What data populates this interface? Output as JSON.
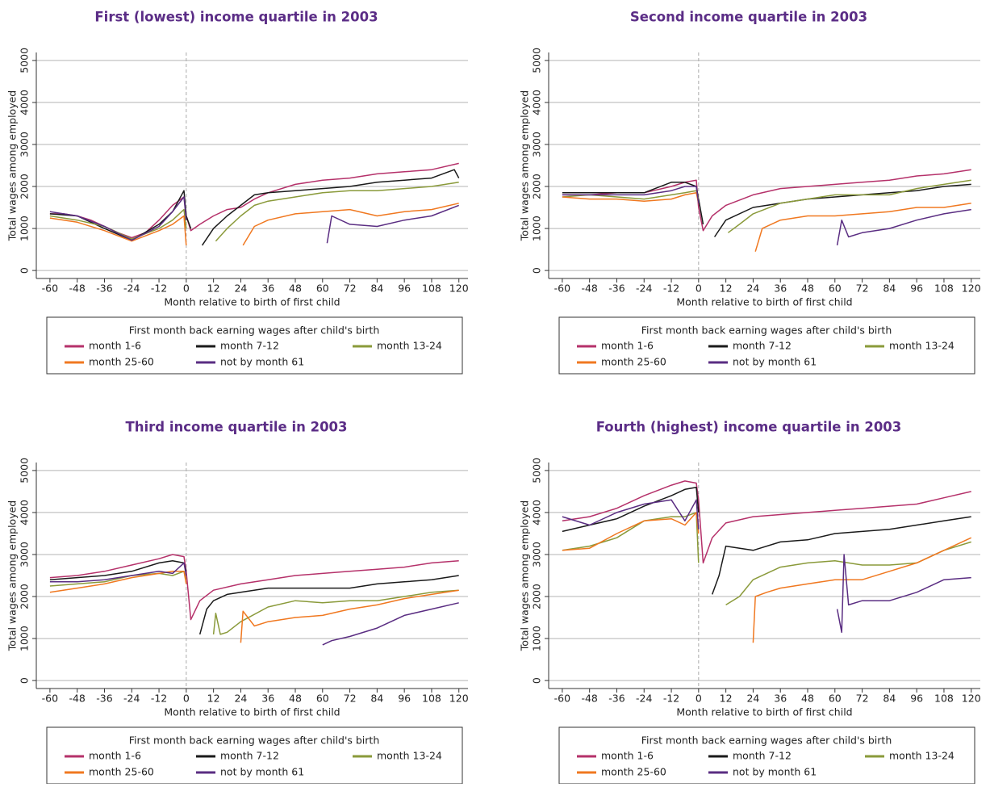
{
  "chart_data": [
    {
      "type": "line",
      "title": "First (lowest) income quartile in 2003",
      "xlabel": "Month relative to birth of first child",
      "ylabel": "Total wages among employed",
      "legend_title": "First month back earning wages after child's birth",
      "xlim": [
        -66,
        124
      ],
      "ylim": [
        -190,
        5190
      ],
      "xticks": [
        -60,
        -48,
        -36,
        -24,
        -12,
        0,
        12,
        24,
        36,
        48,
        60,
        72,
        84,
        96,
        108,
        120
      ],
      "yticks": [
        0,
        1000,
        2000,
        3000,
        4000,
        5000
      ],
      "grid": true,
      "reference_line": 0,
      "series": [
        {
          "name": "month 1-6",
          "color": "#b5316a",
          "x": [
            -60,
            -54,
            -48,
            -42,
            -36,
            -30,
            -24,
            -18,
            -12,
            -6,
            -1,
            0,
            2,
            6,
            12,
            18,
            24,
            30,
            36,
            48,
            60,
            72,
            84,
            96,
            108,
            120
          ],
          "values": [
            1350,
            1350,
            1300,
            1200,
            1050,
            900,
            780,
            900,
            1200,
            1550,
            1750,
            1300,
            950,
            1100,
            1300,
            1450,
            1500,
            1700,
            1850,
            2050,
            2150,
            2200,
            2300,
            2350,
            2400,
            2550
          ]
        },
        {
          "name": "month 7-12",
          "color": "#1a1a1a",
          "x": [
            -60,
            -48,
            -36,
            -24,
            -12,
            -6,
            -1,
            0,
            2,
            4,
            7,
            12,
            18,
            24,
            30,
            36,
            48,
            60,
            72,
            84,
            96,
            108,
            118,
            120
          ],
          "values": [
            1350,
            1300,
            1000,
            720,
            1100,
            1400,
            1900,
            1300,
            1000,
            null,
            600,
            1000,
            1300,
            1550,
            1800,
            1850,
            1900,
            1950,
            2000,
            2100,
            2150,
            2200,
            2400,
            2200
          ]
        },
        {
          "name": "month 13-24",
          "color": "#8a9a3a",
          "x": [
            -60,
            -48,
            -36,
            -24,
            -12,
            -6,
            -1,
            0,
            6,
            13,
            18,
            24,
            30,
            36,
            48,
            60,
            72,
            84,
            96,
            108,
            120
          ],
          "values": [
            1300,
            1200,
            1050,
            750,
            1000,
            1200,
            1450,
            1000,
            null,
            700,
            1000,
            1300,
            1550,
            1650,
            1750,
            1850,
            1900,
            1900,
            1950,
            2000,
            2100
          ]
        },
        {
          "name": "month 25-60",
          "color": "#f07820",
          "x": [
            -60,
            -48,
            -36,
            -24,
            -12,
            -6,
            -1,
            0,
            12,
            25,
            30,
            36,
            48,
            60,
            72,
            84,
            96,
            108,
            120
          ],
          "values": [
            1250,
            1150,
            950,
            700,
            950,
            1100,
            1300,
            600,
            null,
            600,
            1050,
            1200,
            1350,
            1400,
            1450,
            1300,
            1400,
            1450,
            1600
          ]
        },
        {
          "name": "not by month 61",
          "color": "#5a2d82",
          "x": [
            -60,
            -48,
            -36,
            -24,
            -12,
            -6,
            -1,
            0,
            30,
            62,
            64,
            72,
            84,
            96,
            108,
            120
          ],
          "values": [
            1400,
            1300,
            1050,
            720,
            1050,
            1400,
            1750,
            1200,
            null,
            650,
            1300,
            1100,
            1050,
            1200,
            1300,
            1550
          ]
        }
      ]
    },
    {
      "type": "line",
      "title": "Second income quartile in 2003",
      "xlabel": "Month relative to birth of first child",
      "ylabel": "Total wages among employed",
      "legend_title": "First month back earning wages after child's birth",
      "xlim": [
        -66,
        124
      ],
      "ylim": [
        -190,
        5190
      ],
      "xticks": [
        -60,
        -48,
        -36,
        -24,
        -12,
        0,
        12,
        24,
        36,
        48,
        60,
        72,
        84,
        96,
        108,
        120
      ],
      "yticks": [
        0,
        1000,
        2000,
        3000,
        4000,
        5000
      ],
      "grid": true,
      "reference_line": 0,
      "series": [
        {
          "name": "month 1-6",
          "color": "#b5316a",
          "x": [
            -60,
            -48,
            -36,
            -24,
            -12,
            -6,
            -1,
            0,
            2,
            6,
            12,
            24,
            36,
            48,
            60,
            72,
            84,
            96,
            108,
            120
          ],
          "values": [
            1800,
            1800,
            1850,
            1850,
            2000,
            2100,
            2150,
            1500,
            950,
            1300,
            1550,
            1800,
            1950,
            2000,
            2050,
            2100,
            2150,
            2250,
            2300,
            2400
          ]
        },
        {
          "name": "month 7-12",
          "color": "#1a1a1a",
          "x": [
            -60,
            -48,
            -36,
            -24,
            -12,
            -6,
            -1,
            0,
            2,
            4,
            7,
            12,
            24,
            36,
            48,
            60,
            72,
            84,
            96,
            108,
            120
          ],
          "values": [
            1850,
            1850,
            1850,
            1850,
            2100,
            2100,
            2000,
            1700,
            1100,
            null,
            800,
            1200,
            1500,
            1600,
            1700,
            1750,
            1800,
            1850,
            1900,
            2000,
            2050
          ]
        },
        {
          "name": "month 13-24",
          "color": "#8a9a3a",
          "x": [
            -60,
            -48,
            -36,
            -24,
            -12,
            -6,
            -1,
            0,
            6,
            13,
            18,
            24,
            36,
            48,
            60,
            72,
            84,
            96,
            108,
            120
          ],
          "values": [
            1750,
            1800,
            1750,
            1700,
            1800,
            1850,
            1900,
            1700,
            null,
            900,
            1100,
            1350,
            1600,
            1700,
            1800,
            1800,
            1800,
            1950,
            2050,
            2150
          ]
        },
        {
          "name": "month 25-60",
          "color": "#f07820",
          "x": [
            -60,
            -48,
            -36,
            -24,
            -12,
            -6,
            -1,
            0,
            12,
            25,
            28,
            36,
            48,
            60,
            72,
            84,
            96,
            108,
            120
          ],
          "values": [
            1750,
            1700,
            1700,
            1650,
            1700,
            1800,
            1850,
            1600,
            null,
            450,
            1000,
            1200,
            1300,
            1300,
            1350,
            1400,
            1500,
            1500,
            1600
          ]
        },
        {
          "name": "not by month 61",
          "color": "#5a2d82",
          "x": [
            -60,
            -48,
            -36,
            -24,
            -12,
            -6,
            -1,
            0,
            30,
            61,
            63,
            66,
            72,
            84,
            96,
            108,
            120
          ],
          "values": [
            1800,
            1800,
            1800,
            1800,
            1900,
            2000,
            2000,
            1600,
            null,
            600,
            1200,
            800,
            900,
            1000,
            1200,
            1350,
            1450
          ]
        }
      ]
    },
    {
      "type": "line",
      "title": "Third income quartile in 2003",
      "xlabel": "Month relative to birth of first child",
      "ylabel": "Total wages among employed",
      "legend_title": "First month back earning wages after child's birth",
      "xlim": [
        -66,
        124
      ],
      "ylim": [
        -190,
        5190
      ],
      "xticks": [
        -60,
        -48,
        -36,
        -24,
        -12,
        0,
        12,
        24,
        36,
        48,
        60,
        72,
        84,
        96,
        108,
        120
      ],
      "yticks": [
        0,
        1000,
        2000,
        3000,
        4000,
        5000
      ],
      "grid": true,
      "reference_line": 0,
      "series": [
        {
          "name": "month 1-6",
          "color": "#b5316a",
          "x": [
            -60,
            -48,
            -36,
            -24,
            -12,
            -6,
            -1,
            0,
            2,
            6,
            12,
            24,
            36,
            48,
            60,
            72,
            84,
            96,
            108,
            120
          ],
          "values": [
            2450,
            2500,
            2600,
            2750,
            2900,
            3000,
            2950,
            2600,
            1450,
            1900,
            2150,
            2300,
            2400,
            2500,
            2550,
            2600,
            2650,
            2700,
            2800,
            2850
          ]
        },
        {
          "name": "month 7-12",
          "color": "#1a1a1a",
          "x": [
            -60,
            -48,
            -36,
            -24,
            -12,
            -6,
            -1,
            0,
            3,
            6,
            9,
            12,
            18,
            24,
            36,
            48,
            60,
            72,
            84,
            96,
            108,
            120
          ],
          "values": [
            2400,
            2450,
            2500,
            2600,
            2800,
            2850,
            2800,
            2600,
            null,
            1100,
            1700,
            1900,
            2050,
            2100,
            2200,
            2200,
            2200,
            2200,
            2300,
            2350,
            2400,
            2500
          ]
        },
        {
          "name": "month 13-24",
          "color": "#8a9a3a",
          "x": [
            -60,
            -48,
            -36,
            -24,
            -12,
            -6,
            -1,
            0,
            6,
            12,
            13,
            15,
            18,
            24,
            36,
            48,
            60,
            72,
            84,
            96,
            108,
            120
          ],
          "values": [
            2250,
            2300,
            2350,
            2500,
            2550,
            2500,
            2600,
            2400,
            null,
            1100,
            1600,
            1100,
            1150,
            1400,
            1750,
            1900,
            1850,
            1900,
            1900,
            2000,
            2100,
            2150
          ]
        },
        {
          "name": "month 25-60",
          "color": "#f07820",
          "x": [
            -60,
            -48,
            -36,
            -24,
            -12,
            -6,
            -1,
            0,
            12,
            24,
            25,
            30,
            36,
            48,
            60,
            72,
            84,
            96,
            108,
            120
          ],
          "values": [
            2100,
            2200,
            2300,
            2450,
            2550,
            2600,
            2600,
            2300,
            null,
            900,
            1650,
            1300,
            1400,
            1500,
            1550,
            1700,
            1800,
            1950,
            2050,
            2150
          ]
        },
        {
          "name": "not by month 61",
          "color": "#5a2d82",
          "x": [
            -60,
            -48,
            -36,
            -24,
            -12,
            -6,
            -1,
            0,
            30,
            60,
            64,
            72,
            84,
            96,
            108,
            120
          ],
          "values": [
            2350,
            2350,
            2400,
            2500,
            2600,
            2550,
            2800,
            2500,
            null,
            850,
            950,
            1050,
            1250,
            1550,
            1700,
            1850
          ]
        }
      ]
    },
    {
      "type": "line",
      "title": "Fourth (highest) income quartile in 2003",
      "xlabel": "Month relative to birth of first child",
      "ylabel": "Total wages among employed",
      "legend_title": "First month back earning wages after child's birth",
      "xlim": [
        -66,
        124
      ],
      "ylim": [
        -190,
        5190
      ],
      "xticks": [
        -60,
        -48,
        -36,
        -24,
        -12,
        0,
        12,
        24,
        36,
        48,
        60,
        72,
        84,
        96,
        108,
        120
      ],
      "yticks": [
        0,
        1000,
        2000,
        3000,
        4000,
        5000
      ],
      "grid": true,
      "reference_line": 0,
      "series": [
        {
          "name": "month 1-6",
          "color": "#b5316a",
          "x": [
            -60,
            -48,
            -36,
            -24,
            -12,
            -6,
            -1,
            0,
            2,
            6,
            12,
            24,
            36,
            48,
            60,
            72,
            84,
            96,
            108,
            120
          ],
          "values": [
            3800,
            3900,
            4100,
            4400,
            4650,
            4750,
            4700,
            4300,
            2800,
            3400,
            3750,
            3900,
            3950,
            4000,
            4050,
            4100,
            4150,
            4200,
            4350,
            4500
          ]
        },
        {
          "name": "month 7-12",
          "color": "#1a1a1a",
          "x": [
            -60,
            -48,
            -36,
            -24,
            -12,
            -6,
            -1,
            0,
            3,
            6,
            9,
            12,
            24,
            36,
            48,
            60,
            72,
            84,
            96,
            108,
            120
          ],
          "values": [
            3550,
            3700,
            3850,
            4150,
            4400,
            4550,
            4600,
            4000,
            null,
            2050,
            2500,
            3200,
            3100,
            3300,
            3350,
            3500,
            3550,
            3600,
            3700,
            3800,
            3900
          ]
        },
        {
          "name": "month 13-24",
          "color": "#8a9a3a",
          "x": [
            -60,
            -48,
            -36,
            -24,
            -12,
            -6,
            -1,
            0,
            6,
            12,
            18,
            24,
            36,
            48,
            60,
            72,
            84,
            96,
            108,
            120
          ],
          "values": [
            3100,
            3200,
            3400,
            3800,
            3900,
            3900,
            4000,
            2800,
            null,
            1800,
            2000,
            2400,
            2700,
            2800,
            2850,
            2750,
            2750,
            2800,
            3100,
            3300
          ]
        },
        {
          "name": "month 25-60",
          "color": "#f07820",
          "x": [
            -60,
            -48,
            -36,
            -24,
            -12,
            -6,
            -1,
            0,
            12,
            24,
            25,
            30,
            36,
            48,
            60,
            72,
            84,
            96,
            108,
            120
          ],
          "values": [
            3100,
            3150,
            3500,
            3800,
            3850,
            3700,
            4000,
            3500,
            null,
            900,
            2000,
            2100,
            2200,
            2300,
            2400,
            2400,
            2600,
            2800,
            3100,
            3400
          ]
        },
        {
          "name": "not by month 61",
          "color": "#5a2d82",
          "x": [
            -60,
            -48,
            -36,
            -24,
            -12,
            -6,
            -1,
            0,
            30,
            61,
            63,
            64,
            66,
            72,
            84,
            96,
            108,
            120
          ],
          "values": [
            3900,
            3700,
            4000,
            4200,
            4300,
            3800,
            4300,
            3600,
            null,
            1700,
            1150,
            3000,
            1800,
            1900,
            1900,
            2100,
            2400,
            2450
          ]
        }
      ]
    }
  ]
}
